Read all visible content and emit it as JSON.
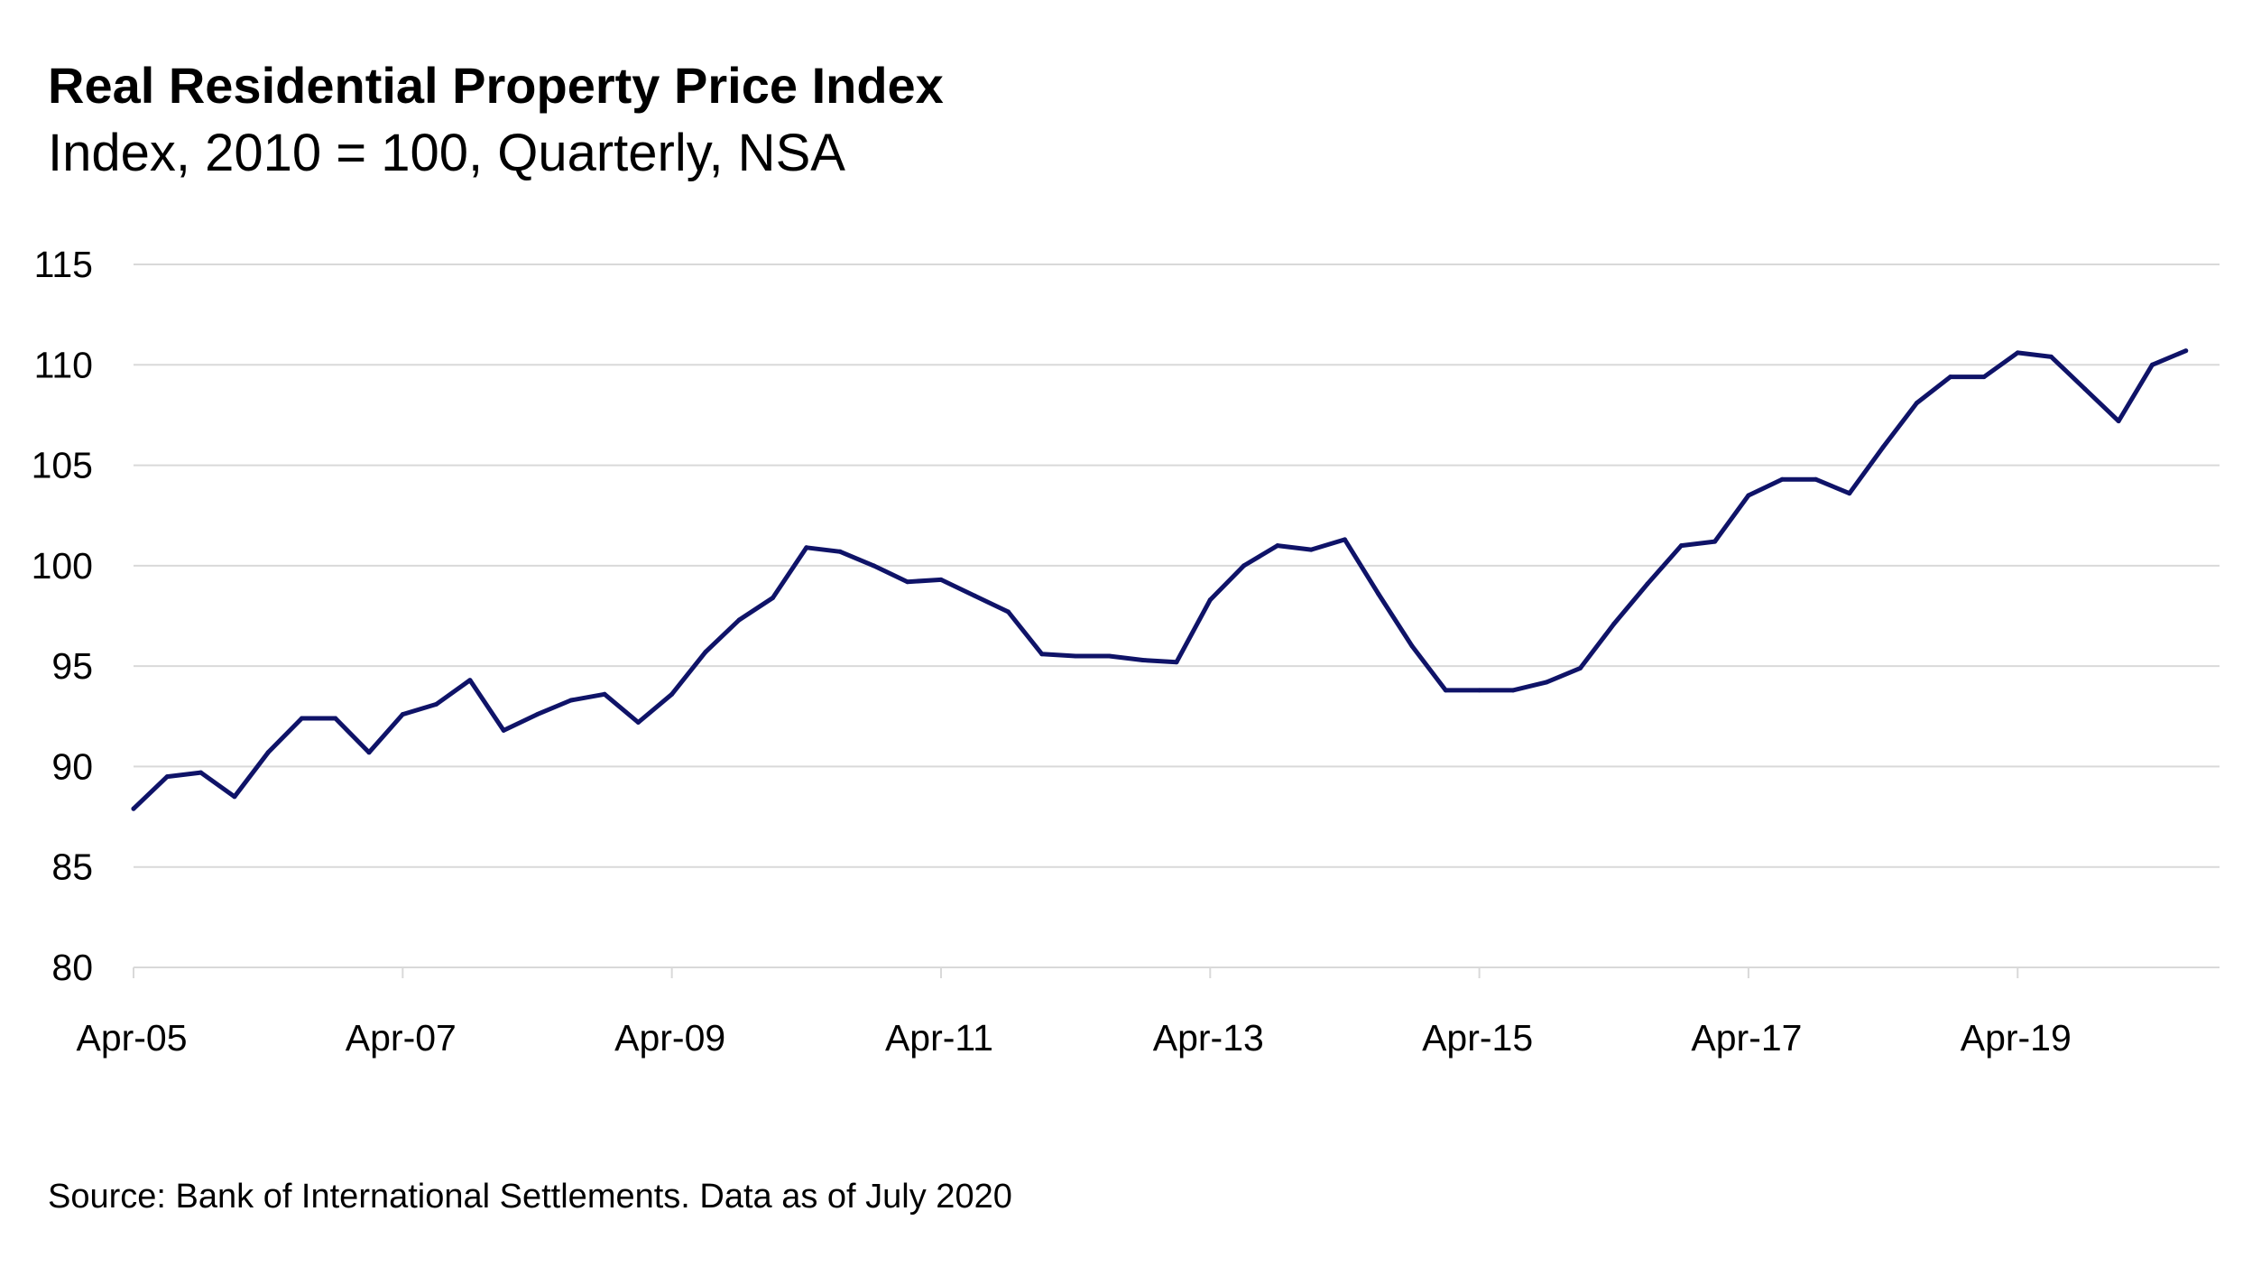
{
  "chart_data": {
    "type": "line",
    "title": "Real Residential Property Price Index",
    "subtitle": "Index, 2010 = 100, Quarterly, NSA",
    "source": "Source: Bank of International Settlements. Data as of July 2020",
    "ylim": [
      80,
      115
    ],
    "yticks": [
      "80",
      "85",
      "90",
      "95",
      "100",
      "105",
      "110",
      "115"
    ],
    "xtick_labels": [
      "Apr-05",
      "Apr-07",
      "Apr-09",
      "Apr-11",
      "Apr-13",
      "Apr-15",
      "Apr-17",
      "Apr-19"
    ],
    "grid": true,
    "line_color": "#0f1368",
    "grid_color": "#d9d9d9",
    "series": [
      {
        "x": [
          "Apr-05",
          "Jul-05",
          "Oct-05",
          "Jan-06",
          "Apr-06",
          "Jul-06",
          "Oct-06",
          "Jan-07",
          "Apr-07",
          "Jul-07",
          "Oct-07",
          "Jan-08",
          "Apr-08",
          "Jul-08",
          "Oct-08",
          "Jan-09",
          "Apr-09",
          "Jul-09",
          "Oct-09",
          "Jan-10",
          "Apr-10",
          "Jul-10",
          "Oct-10",
          "Jan-11",
          "Apr-11",
          "Jul-11",
          "Oct-11",
          "Jan-12",
          "Apr-12",
          "Jul-12",
          "Oct-12",
          "Jan-13",
          "Apr-13",
          "Jul-13",
          "Oct-13",
          "Jan-14",
          "Apr-14",
          "Jul-14",
          "Oct-14",
          "Jan-15",
          "Apr-15",
          "Jul-15",
          "Oct-15",
          "Jan-16",
          "Apr-16",
          "Jul-16",
          "Oct-16",
          "Jan-17",
          "Apr-17",
          "Jul-17",
          "Oct-17",
          "Jan-18",
          "Apr-18",
          "Jul-18",
          "Oct-18",
          "Jan-19",
          "Apr-19",
          "Jul-19",
          "Oct-19",
          "Jan-20",
          "Apr-20",
          "Jul-20",
          "Oct-20"
        ],
        "values": [
          87.9,
          89.5,
          89.7,
          88.5,
          90.7,
          92.4,
          92.4,
          90.7,
          92.6,
          93.1,
          94.3,
          91.8,
          92.6,
          93.3,
          93.6,
          92.2,
          93.6,
          95.7,
          97.3,
          98.4,
          100.9,
          100.7,
          100.0,
          99.2,
          99.3,
          98.5,
          97.7,
          95.6,
          95.5,
          95.5,
          95.3,
          95.2,
          98.3,
          100.0,
          101.0,
          100.8,
          101.3,
          98.6,
          96.0,
          93.8,
          93.8,
          93.8,
          94.2,
          94.9,
          97.1,
          99.1,
          101.0,
          101.2,
          103.5,
          104.3,
          104.3,
          103.6,
          105.9,
          108.1,
          109.4,
          109.4,
          110.6,
          110.4,
          108.8,
          107.2,
          110.0,
          110.7,
          null
        ]
      }
    ]
  }
}
